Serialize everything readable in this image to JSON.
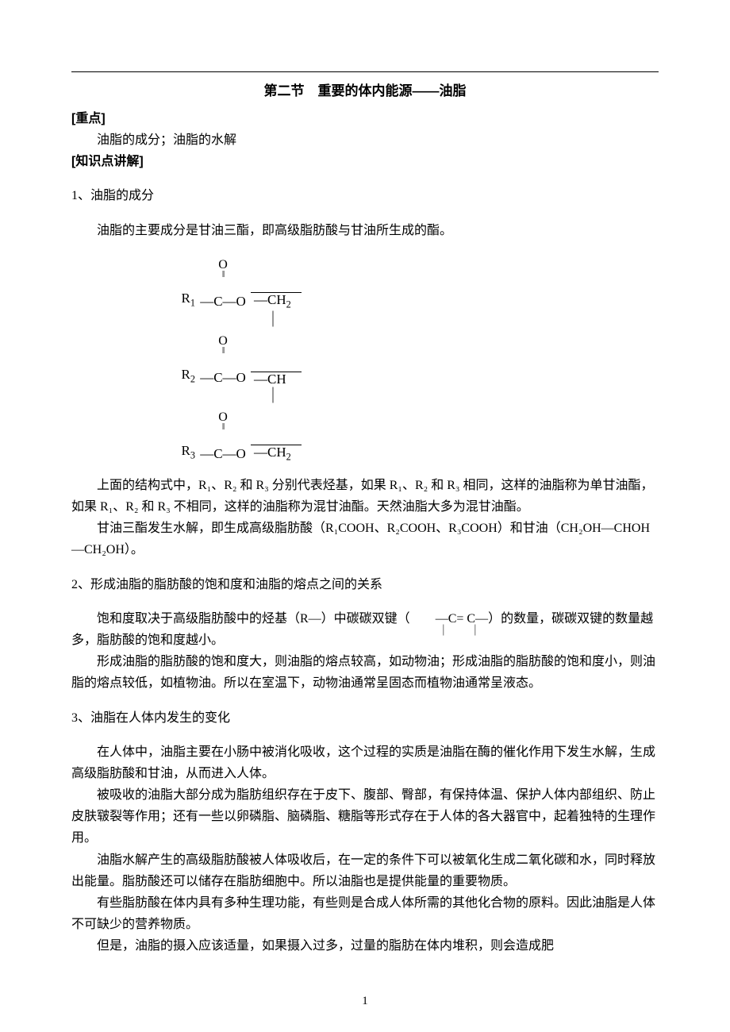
{
  "title": "第二节　重要的体内能源——油脂",
  "heading_zhongdian": "[重点]",
  "zhongdian_text": "油脂的成分；油脂的水解",
  "heading_zhishi": "[知识点讲解]",
  "s1_label": "1、油脂的成分",
  "s1_p1": "油脂的主要成分是甘油三酯，即高级脂肪酸与甘油所生成的酯。",
  "diagram": {
    "r1": "R",
    "r1_sub": "1",
    "r2": "R",
    "r2_sub": "2",
    "r3": "R",
    "r3_sub": "3",
    "o": "O",
    "dbl": "‖",
    "co": "—C—O",
    "ch2": "—CH",
    "ch2_sub": "2",
    "ch": "—CH",
    "vbar": "｜"
  },
  "s1_p2": "上面的结构式中，R₁、R₂ 和 R₃ 分别代表烃基，如果 R₁、R₂ 和 R₃ 相同，这样的油脂称为单甘油酯，如果 R₁、R₂ 和 R₃ 不相同，这样的油脂称为混甘油酯。天然油脂大多为混甘油酯。",
  "s1_p3": "甘油三酯发生水解，即生成高级脂肪酸（R₁COOH、R₂COOH、R₃COOH）和甘油（CH₂OH—CHOH—CH₂OH）。",
  "s2_label": "2、形成油脂的脂肪酸的饱和度和油脂的熔点之间的关系",
  "s2_p1_a": "饱和度取决于高级脂肪酸中的烃基（R—）中碳碳双键（",
  "s2_dbond": "—C= C—",
  "s2_sticks": "｜　｜",
  "s2_p1_b": "）的数量，碳碳双键的数量越多，脂肪酸的饱和度越小。",
  "s2_p2": "形成油脂的脂肪酸的饱和度大，则油脂的熔点较高，如动物油；形成油脂的脂肪酸的饱和度小，则油脂的熔点较低，如植物油。所以在室温下，动物油通常呈固态而植物油通常呈液态。",
  "s3_label": "3、油脂在人体内发生的变化",
  "s3_p1": "在人体中，油脂主要在小肠中被消化吸收，这个过程的实质是油脂在酶的催化作用下发生水解，生成高级脂肪酸和甘油，从而进入人体。",
  "s3_p2": "被吸收的油脂大部分成为脂肪组织存在于皮下、腹部、臀部，有保持体温、保护人体内部组织、防止皮肤皲裂等作用；还有一些以卵磷脂、脑磷脂、糖脂等形式存在于人体的各大器官中，起着独特的生理作用。",
  "s3_p3": "油脂水解产生的高级脂肪酸被人体吸收后，在一定的条件下可以被氧化生成二氧化碳和水，同时释放出能量。脂肪酸还可以储存在脂肪细胞中。所以油脂也是提供能量的重要物质。",
  "s3_p4": "有些脂肪酸在体内具有多种生理功能，有些则是合成人体所需的其他化合物的原料。因此油脂是人体不可缺少的营养物质。",
  "s3_p5": "但是，油脂的摄入应该适量，如果摄入过多，过量的脂肪在体内堆积，则会造成肥",
  "page_number": "1"
}
